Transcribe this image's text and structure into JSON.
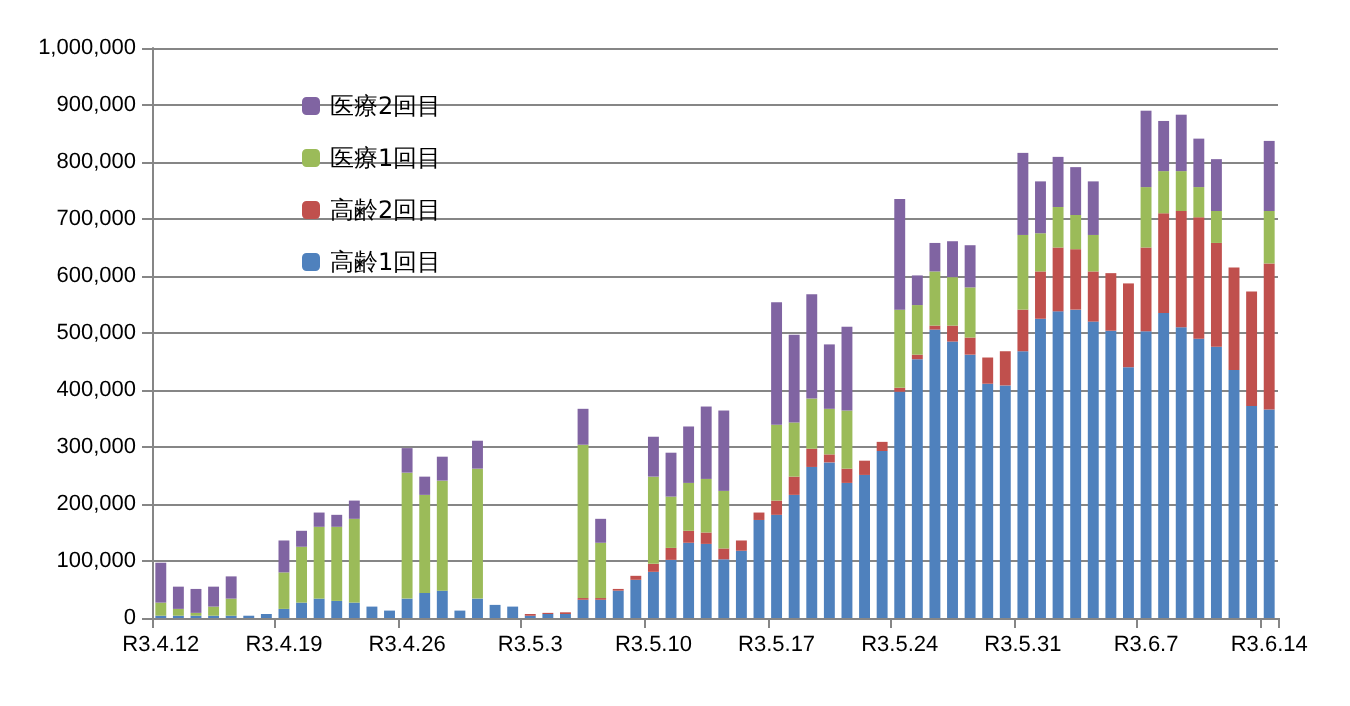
{
  "chart_data": {
    "type": "bar",
    "stacked": true,
    "categories": [
      "R3.4.12",
      null,
      null,
      null,
      null,
      null,
      null,
      "R3.4.19",
      null,
      null,
      null,
      null,
      null,
      null,
      "R3.4.26",
      null,
      null,
      null,
      null,
      null,
      null,
      "R3.5.3",
      null,
      null,
      null,
      null,
      null,
      null,
      "R3.5.10",
      null,
      null,
      null,
      null,
      null,
      null,
      "R3.5.17",
      null,
      null,
      null,
      null,
      null,
      null,
      "R3.5.24",
      null,
      null,
      null,
      null,
      null,
      null,
      "R3.5.31",
      null,
      null,
      null,
      null,
      null,
      null,
      "R3.6.7",
      null,
      null,
      null,
      null,
      null,
      null,
      "R3.6.14"
    ],
    "series": [
      {
        "name": "高齢1回目",
        "color": "#4f81bd",
        "values": [
          4000,
          4000,
          4000,
          4000,
          4000,
          4000,
          7000,
          16000,
          27000,
          34000,
          30000,
          27000,
          20000,
          13000,
          34000,
          44000,
          48000,
          13000,
          34000,
          23000,
          20000,
          4000,
          7000,
          7000,
          32000,
          32000,
          48000,
          67000,
          81000,
          102000,
          132000,
          130000,
          103000,
          118000,
          172000,
          181000,
          216000,
          265000,
          273000,
          237000,
          251000,
          293000,
          397000,
          454000,
          506000,
          485000,
          462000,
          411000,
          408000,
          468000,
          525000,
          538000,
          541000,
          520000,
          504000,
          440000,
          503000,
          535000,
          510000,
          490000,
          476000,
          435000,
          372000,
          366000
        ]
      },
      {
        "name": "高齢2回目",
        "color": "#c0504d",
        "values": [
          0,
          0,
          0,
          0,
          0,
          0,
          0,
          0,
          0,
          0,
          0,
          0,
          0,
          0,
          0,
          0,
          0,
          0,
          0,
          0,
          0,
          3000,
          2000,
          3000,
          3000,
          3000,
          3000,
          7000,
          14000,
          21000,
          21000,
          20000,
          19000,
          18000,
          13000,
          25000,
          32000,
          32000,
          14000,
          25000,
          25000,
          16000,
          7000,
          8000,
          7000,
          28000,
          30000,
          46000,
          60000,
          73000,
          83000,
          112000,
          106000,
          88000,
          101000,
          147000,
          147000,
          175000,
          204000,
          213000,
          182000,
          180000,
          201000,
          256000
        ]
      },
      {
        "name": "医療1回目",
        "color": "#9bbb59",
        "values": [
          23000,
          12000,
          5000,
          16000,
          30000,
          0,
          0,
          64000,
          98000,
          126000,
          130000,
          147000,
          0,
          0,
          221000,
          172000,
          193000,
          0,
          228000,
          0,
          0,
          0,
          0,
          0,
          269000,
          97000,
          0,
          0,
          153000,
          90000,
          84000,
          94000,
          101000,
          0,
          0,
          133000,
          95000,
          88000,
          80000,
          102000,
          0,
          0,
          137000,
          87000,
          95000,
          85000,
          88000,
          0,
          0,
          131000,
          67000,
          71000,
          60000,
          64000,
          0,
          0,
          106000,
          74000,
          70000,
          53000,
          56000,
          0,
          0,
          92000
        ]
      },
      {
        "name": "医療2回目",
        "color": "#8064a2",
        "values": [
          70000,
          39000,
          42000,
          35000,
          39000,
          0,
          0,
          56000,
          28000,
          25000,
          21000,
          32000,
          0,
          0,
          43000,
          32000,
          42000,
          0,
          49000,
          0,
          0,
          0,
          0,
          0,
          63000,
          42000,
          0,
          0,
          70000,
          77000,
          99000,
          127000,
          141000,
          0,
          0,
          215000,
          154000,
          183000,
          113000,
          147000,
          0,
          0,
          194000,
          52000,
          50000,
          63000,
          74000,
          0,
          0,
          144000,
          91000,
          88000,
          84000,
          94000,
          0,
          0,
          134000,
          88000,
          99000,
          85000,
          91000,
          0,
          0,
          123000
        ]
      }
    ],
    "ylim": [
      0,
      1000000
    ],
    "yticks": [
      0,
      {
        "value": 100000,
        "label": "100,000"
      },
      {
        "value": 200000,
        "label": "200,000"
      },
      {
        "value": 300000,
        "label": "300,000"
      },
      {
        "value": 400000,
        "label": "400,000"
      },
      {
        "value": 500000,
        "label": "500,000"
      },
      {
        "value": 600000,
        "label": "600,000"
      },
      {
        "value": 700000,
        "label": "700,000"
      },
      {
        "value": 800000,
        "label": "800,000"
      },
      {
        "value": 900000,
        "label": "900,000"
      },
      {
        "value": 1000000,
        "label": "1,000,000"
      }
    ],
    "grid": true,
    "legend": "top left"
  }
}
